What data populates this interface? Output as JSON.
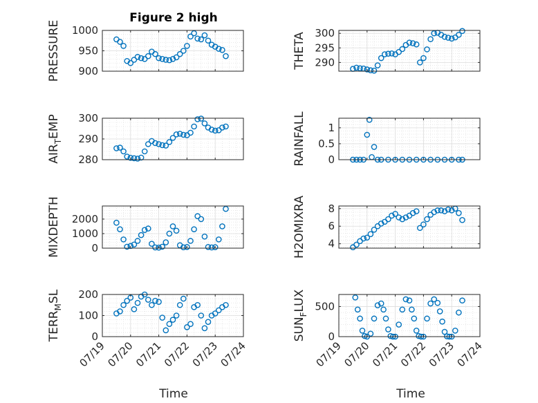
{
  "figure": {
    "title": "Figure 2 high",
    "xlabel": "Time",
    "xticks": [
      "07/19",
      "07/20",
      "07/21",
      "07/22",
      "07/23",
      "07/24"
    ]
  },
  "marker_color": "#0072BD",
  "chart_data": [
    {
      "type": "scatter",
      "ylabel": "PRESSURE",
      "ylim": [
        900,
        1000
      ],
      "yticks": [
        "900",
        "950",
        "1000"
      ],
      "grid": true,
      "x": [
        "07/19 12:00",
        "07/19 15:00",
        "07/19 18:00",
        "07/19 21:00",
        "07/20 00:00",
        "07/20 03:00",
        "07/20 06:00",
        "07/20 09:00",
        "07/20 12:00",
        "07/20 15:00",
        "07/20 18:00",
        "07/20 21:00",
        "07/21 00:00",
        "07/21 03:00",
        "07/21 06:00",
        "07/21 09:00",
        "07/21 12:00",
        "07/21 15:00",
        "07/21 18:00",
        "07/21 21:00",
        "07/22 00:00",
        "07/22 03:00",
        "07/22 06:00",
        "07/22 09:00",
        "07/22 12:00",
        "07/22 15:00",
        "07/22 18:00",
        "07/22 21:00",
        "07/23 00:00",
        "07/23 03:00",
        "07/23 06:00",
        "07/23 09:00"
      ],
      "y": [
        978,
        972,
        962,
        925,
        920,
        928,
        935,
        932,
        930,
        937,
        948,
        942,
        932,
        930,
        928,
        927,
        930,
        934,
        942,
        950,
        962,
        985,
        993,
        980,
        978,
        988,
        975,
        965,
        960,
        955,
        952,
        937
      ]
    },
    {
      "type": "scatter",
      "ylabel": "THETA",
      "ylim": [
        287,
        301
      ],
      "yticks": [
        "290",
        "295",
        "300"
      ],
      "grid": true,
      "x": [
        "07/19 12:00",
        "07/19 15:00",
        "07/19 18:00",
        "07/19 21:00",
        "07/20 00:00",
        "07/20 03:00",
        "07/20 06:00",
        "07/20 09:00",
        "07/20 12:00",
        "07/20 15:00",
        "07/20 18:00",
        "07/20 21:00",
        "07/21 00:00",
        "07/21 03:00",
        "07/21 06:00",
        "07/21 09:00",
        "07/21 12:00",
        "07/21 15:00",
        "07/21 18:00",
        "07/21 21:00",
        "07/22 00:00",
        "07/22 03:00",
        "07/22 06:00",
        "07/22 09:00",
        "07/22 12:00",
        "07/22 15:00",
        "07/22 18:00",
        "07/22 21:00",
        "07/23 00:00",
        "07/23 03:00",
        "07/23 06:00",
        "07/23 09:00"
      ],
      "y": [
        287.8,
        288.2,
        288.0,
        287.9,
        287.6,
        287.3,
        287.2,
        289.0,
        291.5,
        292.8,
        293.0,
        293.1,
        292.8,
        293.6,
        294.6,
        296.0,
        296.8,
        296.6,
        296.2,
        290.0,
        291.5,
        294.5,
        298.0,
        300.0,
        300.2,
        299.5,
        298.8,
        298.5,
        298.2,
        298.6,
        299.5,
        300.8
      ]
    },
    {
      "type": "scatter",
      "ylabel": "AIR_TEMP",
      "ylim": [
        280,
        300
      ],
      "yticks": [
        "280",
        "290",
        "300"
      ],
      "grid": true,
      "x": [
        "07/19 12:00",
        "07/19 15:00",
        "07/19 18:00",
        "07/19 21:00",
        "07/20 00:00",
        "07/20 03:00",
        "07/20 06:00",
        "07/20 09:00",
        "07/20 12:00",
        "07/20 15:00",
        "07/20 18:00",
        "07/20 21:00",
        "07/21 00:00",
        "07/21 03:00",
        "07/21 06:00",
        "07/21 09:00",
        "07/21 12:00",
        "07/21 15:00",
        "07/21 18:00",
        "07/21 21:00",
        "07/22 00:00",
        "07/22 03:00",
        "07/22 06:00",
        "07/22 09:00",
        "07/22 12:00",
        "07/22 15:00",
        "07/22 18:00",
        "07/22 21:00",
        "07/23 00:00",
        "07/23 03:00",
        "07/23 06:00",
        "07/23 09:00"
      ],
      "y": [
        285.5,
        285.8,
        284.0,
        281.5,
        280.9,
        280.7,
        280.5,
        281.0,
        284.0,
        287.5,
        289.0,
        288.0,
        287.5,
        287.0,
        286.8,
        288.5,
        290.5,
        292.2,
        292.5,
        292.0,
        291.8,
        293.0,
        296.0,
        299.5,
        299.8,
        297.5,
        295.5,
        294.5,
        294.0,
        294.2,
        295.5,
        296.0
      ]
    },
    {
      "type": "scatter",
      "ylabel": "RAINFALL",
      "ylim": [
        0,
        1.3
      ],
      "yticks": [
        "0",
        "0.5",
        "1"
      ],
      "grid": true,
      "x": [
        "07/19 12:00",
        "07/19 15:00",
        "07/19 18:00",
        "07/19 21:00",
        "07/20 00:00",
        "07/20 02:00",
        "07/20 04:00",
        "07/20 06:00",
        "07/20 09:00",
        "07/20 12:00",
        "07/20 18:00",
        "07/21 00:00",
        "07/21 06:00",
        "07/21 12:00",
        "07/21 18:00",
        "07/22 00:00",
        "07/22 06:00",
        "07/22 12:00",
        "07/22 18:00",
        "07/23 00:00",
        "07/23 06:00",
        "07/23 09:00"
      ],
      "y": [
        0,
        0,
        0,
        0,
        0.78,
        1.25,
        0.08,
        0.4,
        0,
        0,
        0,
        0,
        0,
        0,
        0,
        0,
        0,
        0,
        0,
        0,
        0,
        0
      ]
    },
    {
      "type": "scatter",
      "ylabel": "MIXDEPTH",
      "ylim": [
        0,
        2900
      ],
      "yticks": [
        "0",
        "1000",
        "2000"
      ],
      "grid": true,
      "x": [
        "07/19 12:00",
        "07/19 15:00",
        "07/19 18:00",
        "07/19 21:00",
        "07/20 00:00",
        "07/20 03:00",
        "07/20 06:00",
        "07/20 09:00",
        "07/20 12:00",
        "07/20 15:00",
        "07/20 18:00",
        "07/20 21:00",
        "07/21 00:00",
        "07/21 03:00",
        "07/21 06:00",
        "07/21 09:00",
        "07/21 12:00",
        "07/21 15:00",
        "07/21 18:00",
        "07/21 21:00",
        "07/22 00:00",
        "07/22 03:00",
        "07/22 06:00",
        "07/22 09:00",
        "07/22 12:00",
        "07/22 15:00",
        "07/22 18:00",
        "07/22 21:00",
        "07/23 00:00",
        "07/23 03:00",
        "07/23 06:00",
        "07/23 09:00"
      ],
      "y": [
        1750,
        1300,
        600,
        100,
        150,
        250,
        500,
        900,
        1250,
        1350,
        300,
        50,
        40,
        100,
        400,
        1000,
        1500,
        1200,
        200,
        60,
        80,
        500,
        1300,
        2200,
        2000,
        800,
        80,
        50,
        70,
        600,
        1500,
        2700
      ]
    },
    {
      "type": "scatter",
      "ylabel": "H2OMIXRA",
      "ylim": [
        3.5,
        8.3
      ],
      "yticks": [
        "4",
        "6",
        "8"
      ],
      "grid": true,
      "x": [
        "07/19 12:00",
        "07/19 15:00",
        "07/19 18:00",
        "07/19 21:00",
        "07/20 00:00",
        "07/20 03:00",
        "07/20 06:00",
        "07/20 09:00",
        "07/20 12:00",
        "07/20 15:00",
        "07/20 18:00",
        "07/20 21:00",
        "07/21 00:00",
        "07/21 03:00",
        "07/21 06:00",
        "07/21 09:00",
        "07/21 12:00",
        "07/21 15:00",
        "07/21 18:00",
        "07/21 21:00",
        "07/22 00:00",
        "07/22 03:00",
        "07/22 06:00",
        "07/22 09:00",
        "07/22 12:00",
        "07/22 15:00",
        "07/22 18:00",
        "07/22 21:00",
        "07/23 00:00",
        "07/23 03:00",
        "07/23 06:00",
        "07/23 09:00"
      ],
      "y": [
        3.6,
        3.9,
        4.3,
        4.6,
        4.7,
        5.1,
        5.6,
        6.0,
        6.3,
        6.5,
        6.8,
        7.2,
        7.4,
        7.0,
        6.8,
        7.0,
        7.2,
        7.5,
        7.7,
        5.8,
        6.2,
        6.8,
        7.3,
        7.6,
        7.8,
        7.8,
        7.7,
        7.9,
        7.8,
        8.0,
        7.5,
        6.7
      ]
    },
    {
      "type": "scatter",
      "ylabel": "TERR_MSL",
      "ylim": [
        0,
        200
      ],
      "yticks": [
        "0",
        "100",
        "200"
      ],
      "grid": true,
      "x": [
        "07/19 12:00",
        "07/19 15:00",
        "07/19 18:00",
        "07/19 21:00",
        "07/20 00:00",
        "07/20 03:00",
        "07/20 06:00",
        "07/20 09:00",
        "07/20 12:00",
        "07/20 15:00",
        "07/20 18:00",
        "07/20 21:00",
        "07/21 00:00",
        "07/21 03:00",
        "07/21 06:00",
        "07/21 09:00",
        "07/21 12:00",
        "07/21 15:00",
        "07/21 18:00",
        "07/21 21:00",
        "07/22 00:00",
        "07/22 03:00",
        "07/22 06:00",
        "07/22 09:00",
        "07/22 12:00",
        "07/22 15:00",
        "07/22 18:00",
        "07/22 21:00",
        "07/23 00:00",
        "07/23 03:00",
        "07/23 06:00",
        "07/23 09:00"
      ],
      "y": [
        110,
        120,
        150,
        170,
        185,
        130,
        160,
        190,
        200,
        175,
        150,
        170,
        165,
        90,
        30,
        60,
        80,
        100,
        150,
        180,
        45,
        60,
        140,
        150,
        100,
        40,
        70,
        100,
        110,
        125,
        140,
        150
      ]
    },
    {
      "type": "scatter",
      "ylabel": "SUN_FLUX",
      "ylim": [
        0,
        700
      ],
      "yticks": [
        "0",
        "500"
      ],
      "grid": true,
      "x": [
        "07/19 14:00",
        "07/19 16:00",
        "07/19 18:00",
        "07/19 20:00",
        "07/19 22:00",
        "07/20 00:00",
        "07/20 03:00",
        "07/20 06:00",
        "07/20 09:00",
        "07/20 12:00",
        "07/20 14:00",
        "07/20 16:00",
        "07/20 18:00",
        "07/20 20:00",
        "07/20 22:00",
        "07/21 00:00",
        "07/21 03:00",
        "07/21 06:00",
        "07/21 09:00",
        "07/21 12:00",
        "07/21 14:00",
        "07/21 16:00",
        "07/21 18:00",
        "07/21 20:00",
        "07/21 22:00",
        "07/22 00:00",
        "07/22 03:00",
        "07/22 06:00",
        "07/22 09:00",
        "07/22 12:00",
        "07/22 14:00",
        "07/22 16:00",
        "07/22 18:00",
        "07/22 20:00",
        "07/22 22:00",
        "07/23 00:00",
        "07/23 03:00",
        "07/23 06:00",
        "07/23 09:00"
      ],
      "y": [
        650,
        450,
        300,
        100,
        10,
        0,
        50,
        300,
        520,
        550,
        450,
        300,
        120,
        10,
        0,
        0,
        200,
        450,
        620,
        600,
        450,
        300,
        100,
        10,
        0,
        0,
        300,
        550,
        620,
        560,
        420,
        250,
        80,
        5,
        0,
        0,
        100,
        400,
        600
      ]
    }
  ]
}
